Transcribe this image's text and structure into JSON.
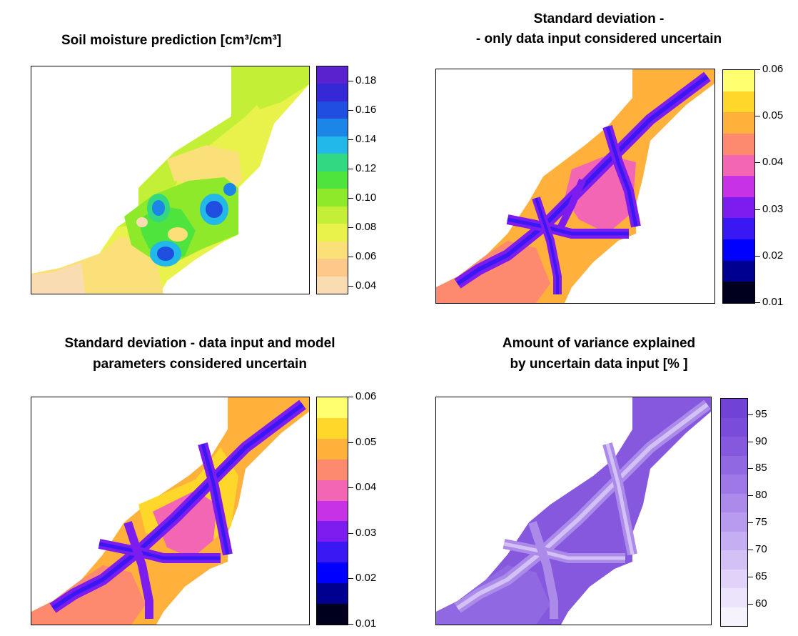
{
  "chart_data": [
    {
      "type": "heatmap",
      "title": "Soil moisture prediction [cm³/cm³]",
      "colorbar": {
        "ticks": [
          "0.18",
          "0.16",
          "0.14",
          "0.12",
          "0.10",
          "0.08",
          "0.06",
          "0.04"
        ],
        "tick_values": [
          0.18,
          0.16,
          0.14,
          0.12,
          0.1,
          0.08,
          0.06,
          0.04
        ],
        "range": [
          0.035,
          0.19
        ],
        "colors": [
          "#fadcb2",
          "#fdc98a",
          "#fbe07a",
          "#e9f24a",
          "#c3f036",
          "#8ee92b",
          "#4fe33e",
          "#32d882",
          "#22b8e8",
          "#1c86e8",
          "#1f4ee0",
          "#3528d6",
          "#5a22cf"
        ]
      }
    },
    {
      "type": "heatmap",
      "title": "Standard deviation - - only data input considered uncertain",
      "title_lines": [
        "Standard deviation -",
        "- only data input considered uncertain"
      ],
      "colorbar": {
        "ticks": [
          "0.06",
          "0.05",
          "0.04",
          "0.03",
          "0.02",
          "0.01"
        ],
        "tick_values": [
          0.06,
          0.05,
          0.04,
          0.03,
          0.02,
          0.01
        ],
        "range": [
          0.01,
          0.06
        ],
        "colors": [
          "#00001e",
          "#000090",
          "#0000ff",
          "#3a18f4",
          "#7d1cef",
          "#c832e6",
          "#f266b4",
          "#fd8a6e",
          "#ffb13c",
          "#ffd72a",
          "#ffff70"
        ]
      }
    },
    {
      "type": "heatmap",
      "title": "Standard deviation - data input and model parameters considered uncertain",
      "title_lines": [
        "Standard deviation - data input and model",
        "parameters considered uncertain"
      ],
      "colorbar": {
        "ticks": [
          "0.06",
          "0.05",
          "0.04",
          "0.03",
          "0.02",
          "0.01"
        ],
        "tick_values": [
          0.06,
          0.05,
          0.04,
          0.03,
          0.02,
          0.01
        ],
        "range": [
          0.01,
          0.06
        ],
        "colors": [
          "#00001e",
          "#000090",
          "#0000ff",
          "#3a18f4",
          "#7d1cef",
          "#c832e6",
          "#f266b4",
          "#fd8a6e",
          "#ffb13c",
          "#ffd72a",
          "#ffff70"
        ]
      }
    },
    {
      "type": "heatmap",
      "title": "Amount of variance explained by uncertain data input [% ]",
      "title_lines": [
        "Amount of variance explained",
        "by uncertain data input [% ]"
      ],
      "colorbar": {
        "ticks": [
          "95",
          "90",
          "85",
          "80",
          "75",
          "70",
          "65",
          "60"
        ],
        "tick_values": [
          95,
          90,
          85,
          80,
          75,
          70,
          65,
          60
        ],
        "range": [
          56,
          98
        ],
        "colors": [
          "#f6f3fd",
          "#ece4fb",
          "#e0d2f8",
          "#d3c0f5",
          "#c6aef2",
          "#b89bee",
          "#ab8aea",
          "#9d78e6",
          "#9068e2",
          "#8558de",
          "#7a4cda",
          "#7042d6"
        ]
      }
    }
  ]
}
